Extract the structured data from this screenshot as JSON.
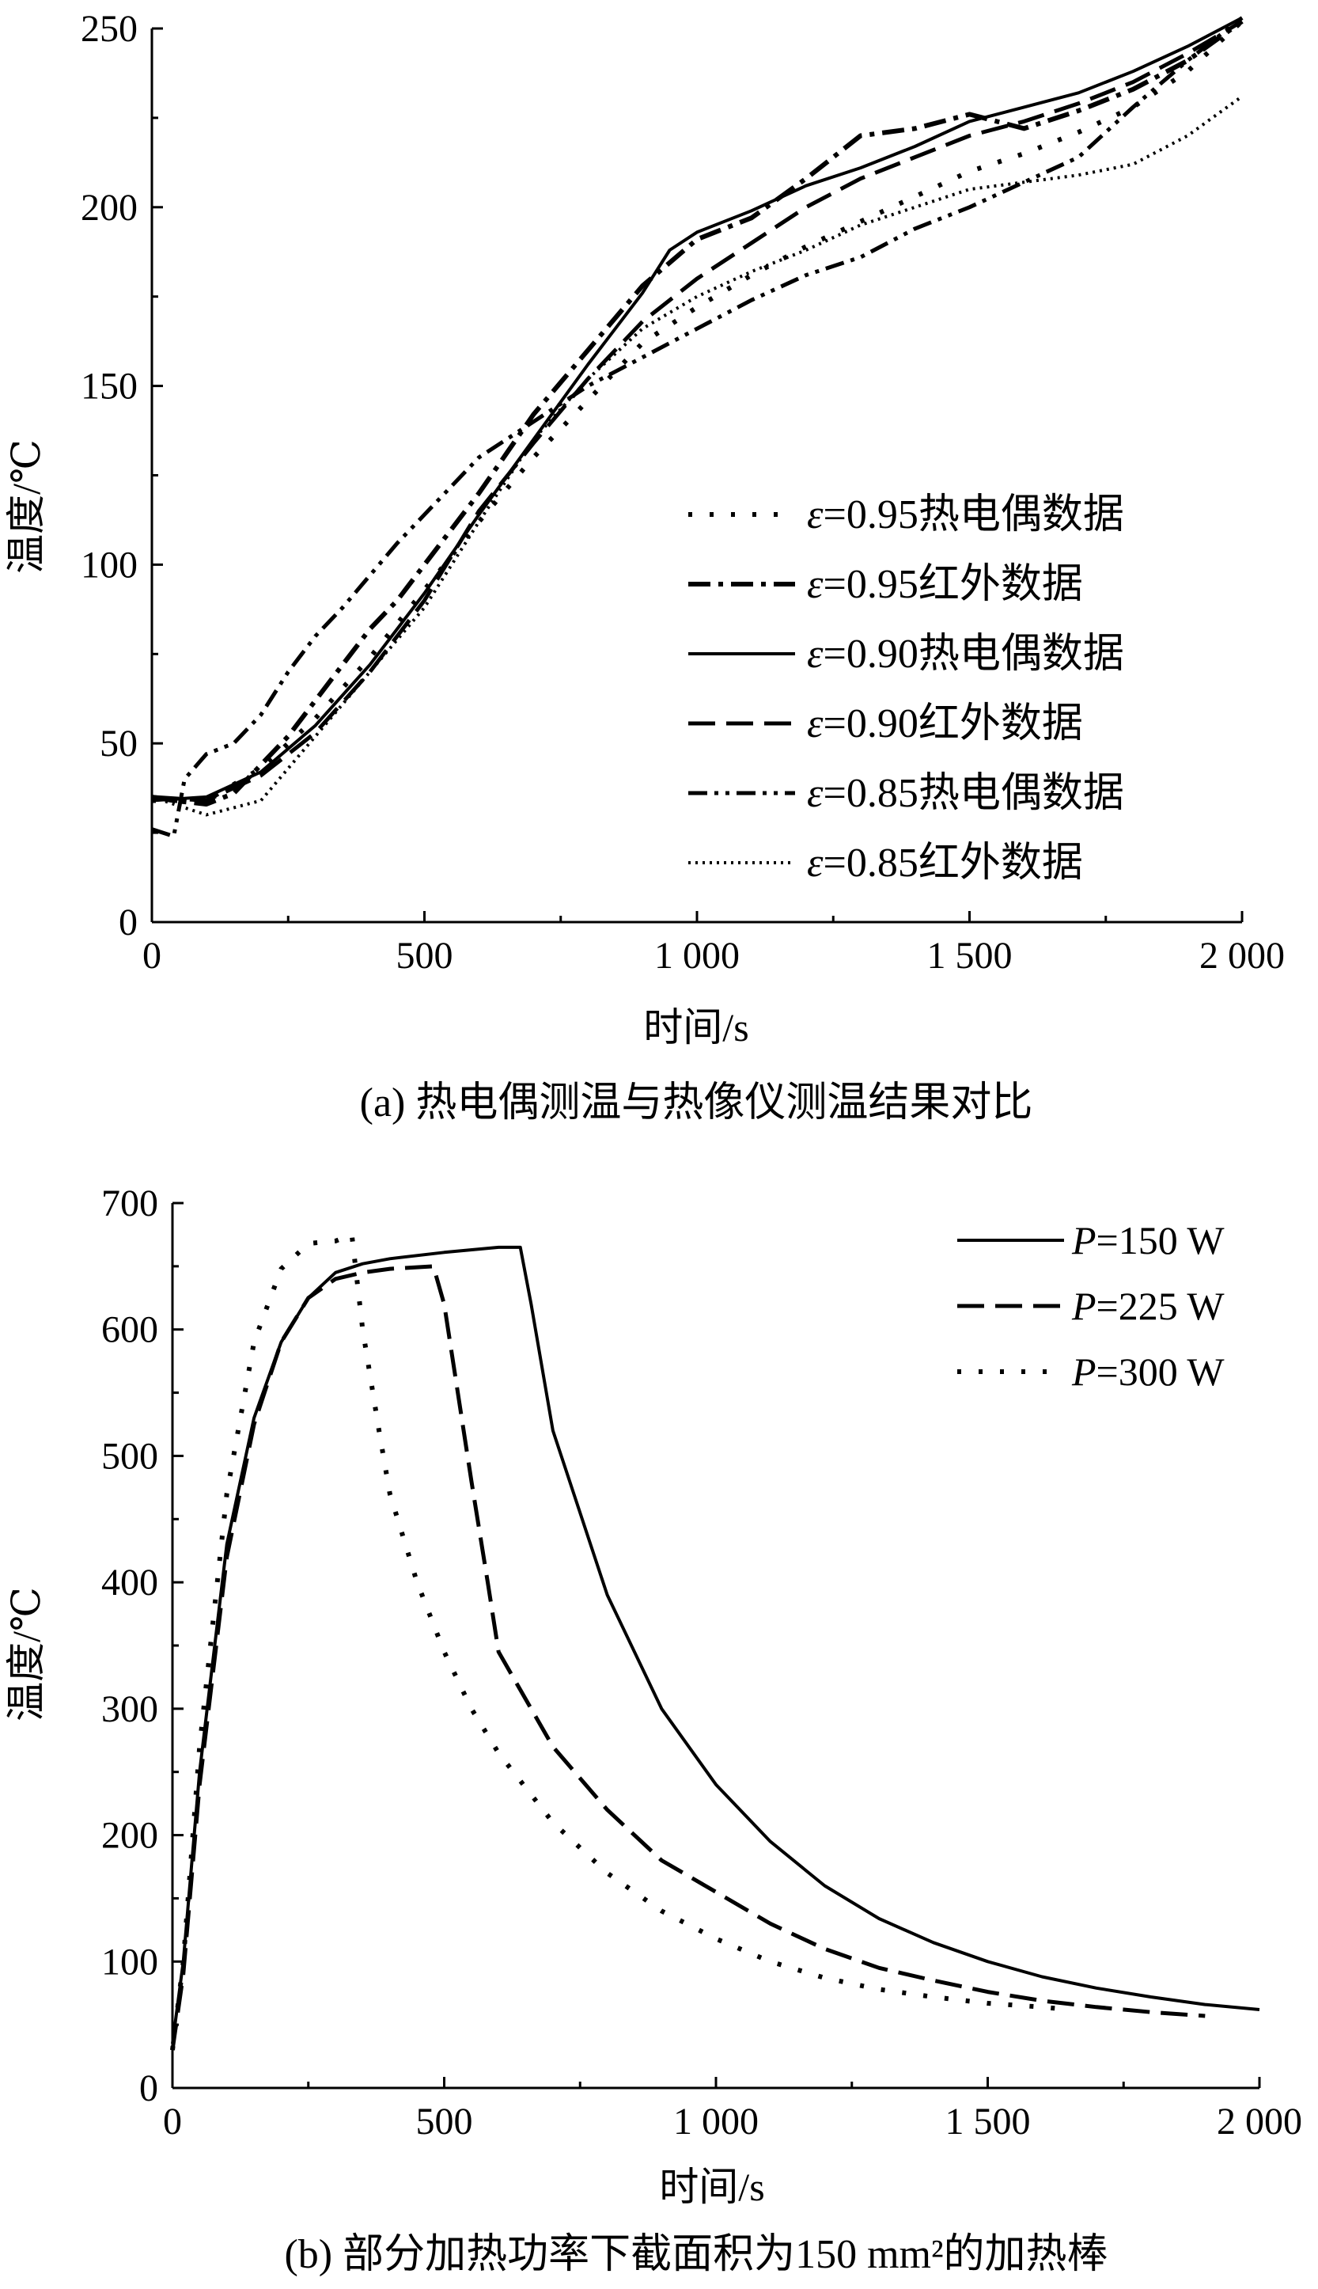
{
  "chart_data": [
    {
      "type": "line",
      "caption": "(a) 热电偶测温与热像仪测温结果对比",
      "xlabel": "时间/s",
      "ylabel": "温度/℃",
      "xlim": [
        0,
        2000
      ],
      "ylim": [
        0,
        250
      ],
      "x_ticks": [
        0,
        500,
        1000,
        1500,
        2000
      ],
      "x_tick_labels": [
        "0",
        "500",
        "1 000",
        "1 500",
        "2 000"
      ],
      "y_ticks": [
        0,
        50,
        100,
        150,
        200,
        250
      ],
      "y_tick_labels": [
        "0",
        "50",
        "100",
        "150",
        "200",
        "250"
      ],
      "legend_position": "bottom-right",
      "series": [
        {
          "name": "ε=0.95热电偶数据",
          "name_symbol": "ε",
          "name_rest": "=0.95热电偶数据",
          "style": "dot",
          "x": [
            0,
            100,
            200,
            300,
            400,
            500,
            600,
            700,
            800,
            900,
            1000,
            1100,
            1200,
            1300,
            1400,
            1500,
            1600,
            1700,
            1800,
            1900,
            2000
          ],
          "y": [
            34,
            34,
            43,
            57,
            74,
            93,
            112,
            130,
            146,
            162,
            172,
            181,
            189,
            196,
            203,
            210,
            215,
            221,
            228,
            238,
            252
          ]
        },
        {
          "name": "ε=0.95红外数据",
          "name_symbol": "ε",
          "name_rest": "=0.95红外数据",
          "style": "dashdot",
          "x": [
            0,
            40,
            100,
            150,
            200,
            250,
            300,
            350,
            400,
            450,
            500,
            550,
            600,
            700,
            800,
            900,
            1000,
            1100,
            1200,
            1300,
            1400,
            1500,
            1600,
            1700,
            1800,
            1900,
            2000
          ],
          "y": [
            35,
            34,
            33,
            36,
            44,
            52,
            62,
            72,
            82,
            90,
            100,
            110,
            120,
            142,
            160,
            178,
            191,
            197,
            208,
            220,
            222,
            226,
            222,
            227,
            233,
            241,
            252
          ]
        },
        {
          "name": "ε=0.90热电偶数据",
          "name_symbol": "ε",
          "name_rest": "=0.90热电偶数据",
          "style": "solid",
          "x": [
            0,
            100,
            200,
            300,
            400,
            500,
            600,
            700,
            800,
            900,
            950,
            1000,
            1100,
            1200,
            1300,
            1400,
            1500,
            1600,
            1700,
            1800,
            1900,
            2000
          ],
          "y": [
            34,
            35,
            42,
            55,
            72,
            92,
            114,
            135,
            156,
            176,
            188,
            193,
            199,
            206,
            211,
            217,
            224,
            228,
            232,
            238,
            245,
            253
          ]
        },
        {
          "name": "ε=0.90红外数据",
          "name_symbol": "ε",
          "name_rest": "=0.90红外数据",
          "style": "dash",
          "x": [
            0,
            100,
            200,
            300,
            400,
            500,
            600,
            700,
            800,
            900,
            1000,
            1100,
            1200,
            1300,
            1400,
            1500,
            1600,
            1700,
            1800,
            1900,
            2000
          ],
          "y": [
            35,
            34,
            41,
            53,
            70,
            90,
            115,
            134,
            152,
            168,
            180,
            190,
            200,
            208,
            214,
            220,
            224,
            229,
            235,
            243,
            252
          ]
        },
        {
          "name": "ε=0.85热电偶数据",
          "name_symbol": "ε",
          "name_rest": "=0.85热电偶数据",
          "style": "dashdotdot",
          "x": [
            0,
            40,
            60,
            100,
            150,
            200,
            250,
            300,
            350,
            400,
            450,
            500,
            550,
            600,
            700,
            800,
            900,
            1000,
            1100,
            1200,
            1300,
            1400,
            1500,
            1600,
            1700,
            1800,
            1900,
            2000
          ],
          "y": [
            26,
            24,
            40,
            47,
            50,
            58,
            70,
            80,
            88,
            97,
            106,
            114,
            122,
            130,
            140,
            150,
            158,
            166,
            174,
            181,
            186,
            194,
            200,
            207,
            214,
            228,
            241,
            253
          ]
        },
        {
          "name": "ε=0.85红外数据",
          "name_symbol": "ε",
          "name_rest": "=0.85红外数据",
          "style": "densedot",
          "x": [
            0,
            100,
            200,
            300,
            400,
            500,
            600,
            700,
            800,
            900,
            1000,
            1100,
            1200,
            1300,
            1400,
            1500,
            1600,
            1700,
            1800,
            1900,
            2000
          ],
          "y": [
            35,
            30,
            34,
            52,
            70,
            88,
            112,
            135,
            152,
            166,
            175,
            182,
            188,
            195,
            200,
            205,
            207,
            209,
            212,
            220,
            231
          ]
        }
      ]
    },
    {
      "type": "line",
      "caption": "(b) 部分加热功率下截面积为150 mm²的加热棒",
      "xlabel": "时间/s",
      "ylabel": "温度/℃",
      "xlim": [
        0,
        2000
      ],
      "ylim": [
        0,
        700
      ],
      "x_ticks": [
        0,
        500,
        1000,
        1500,
        2000
      ],
      "x_tick_labels": [
        "0",
        "500",
        "1 000",
        "1 500",
        "2 000"
      ],
      "y_ticks": [
        0,
        100,
        200,
        300,
        400,
        500,
        600,
        700
      ],
      "y_tick_labels": [
        "0",
        "100",
        "200",
        "300",
        "400",
        "500",
        "600",
        "700"
      ],
      "legend_position": "top-right",
      "series": [
        {
          "name": "P=150 W",
          "name_symbol": "P",
          "name_rest": "=150 W",
          "style": "solid",
          "x": [
            0,
            20,
            50,
            100,
            150,
            200,
            250,
            300,
            350,
            400,
            500,
            600,
            640,
            660,
            700,
            800,
            900,
            1000,
            1100,
            1200,
            1300,
            1400,
            1500,
            1600,
            1700,
            1800,
            1900,
            2000
          ],
          "y": [
            35,
            100,
            250,
            430,
            530,
            590,
            625,
            645,
            652,
            656,
            661,
            665,
            665,
            620,
            520,
            390,
            300,
            240,
            195,
            160,
            134,
            115,
            100,
            88,
            79,
            72,
            66,
            62
          ]
        },
        {
          "name": "P=225 W",
          "name_symbol": "P",
          "name_rest": "=225 W",
          "style": "dash",
          "x": [
            0,
            20,
            50,
            100,
            150,
            200,
            250,
            300,
            350,
            400,
            480,
            500,
            550,
            580,
            600,
            700,
            800,
            900,
            1000,
            1100,
            1200,
            1300,
            1400,
            1500,
            1600,
            1700,
            1800,
            1900
          ],
          "y": [
            30,
            90,
            240,
            420,
            525,
            590,
            625,
            640,
            645,
            648,
            650,
            620,
            480,
            400,
            345,
            270,
            220,
            180,
            155,
            130,
            110,
            95,
            85,
            76,
            69,
            64,
            60,
            57
          ]
        },
        {
          "name": "P=300 W",
          "name_symbol": "P",
          "name_rest": "=300 W",
          "style": "dot",
          "x": [
            0,
            20,
            50,
            100,
            150,
            200,
            250,
            300,
            330,
            350,
            380,
            400,
            450,
            500,
            550,
            600,
            700,
            800,
            900,
            1000,
            1100,
            1200,
            1300,
            1400,
            1500,
            1600,
            1650
          ],
          "y": [
            30,
            100,
            270,
            470,
            590,
            648,
            668,
            670,
            675,
            600,
            520,
            470,
            400,
            345,
            300,
            265,
            210,
            170,
            140,
            118,
            100,
            87,
            78,
            72,
            67,
            64,
            62
          ]
        }
      ]
    }
  ]
}
